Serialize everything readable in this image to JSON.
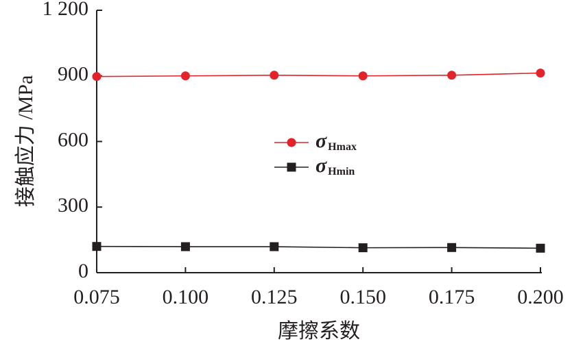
{
  "chart_data": {
    "type": "line",
    "x_label": "摩擦系数",
    "y_label": "接触应力 /MPa",
    "x": [
      0.075,
      0.1,
      0.125,
      0.15,
      0.175,
      0.2
    ],
    "series": [
      {
        "name": "σHmax",
        "color": "#e3222a",
        "marker": "circle",
        "values": [
          897,
          900,
          903,
          900,
          903,
          913
        ]
      },
      {
        "name": "σHmin",
        "color": "#231f20",
        "marker": "square",
        "values": [
          120,
          119,
          119,
          114,
          115,
          112
        ]
      }
    ],
    "xlim": [
      0.075,
      0.2
    ],
    "xticks": [
      0.075,
      {
        "value": 0.1,
        "label": "0.100"
      },
      0.125,
      {
        "value": 0.15,
        "label": "0.150"
      },
      0.175,
      {
        "value": 0.2,
        "label": "0.200"
      }
    ],
    "ylim": [
      0,
      1200
    ],
    "yticks": [
      0,
      300,
      600,
      {
        "value": 900,
        "label": "900"
      },
      {
        "value": 1200,
        "label": "1 200"
      }
    ],
    "grid": false,
    "legend": "center"
  }
}
